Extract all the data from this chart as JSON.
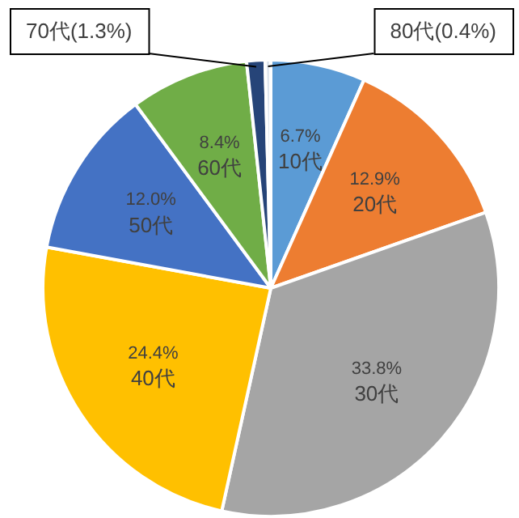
{
  "chart_data": {
    "type": "pie",
    "categories": [
      "10代",
      "20代",
      "30代",
      "40代",
      "50代",
      "60代",
      "70代",
      "80代"
    ],
    "values": [
      6.7,
      12.9,
      33.8,
      24.4,
      12.0,
      8.4,
      1.3,
      0.4
    ],
    "colors": [
      "#5b9bd5",
      "#ed7d31",
      "#a5a5a5",
      "#ffc000",
      "#4472c4",
      "#70ad47",
      "#264478",
      "#dfe6ee"
    ],
    "value_labels": [
      "6.7%",
      "12.9%",
      "33.8%",
      "24.4%",
      "12.0%",
      "8.4%",
      "(1.3%)",
      "(0.4%)"
    ],
    "legend": false
  }
}
